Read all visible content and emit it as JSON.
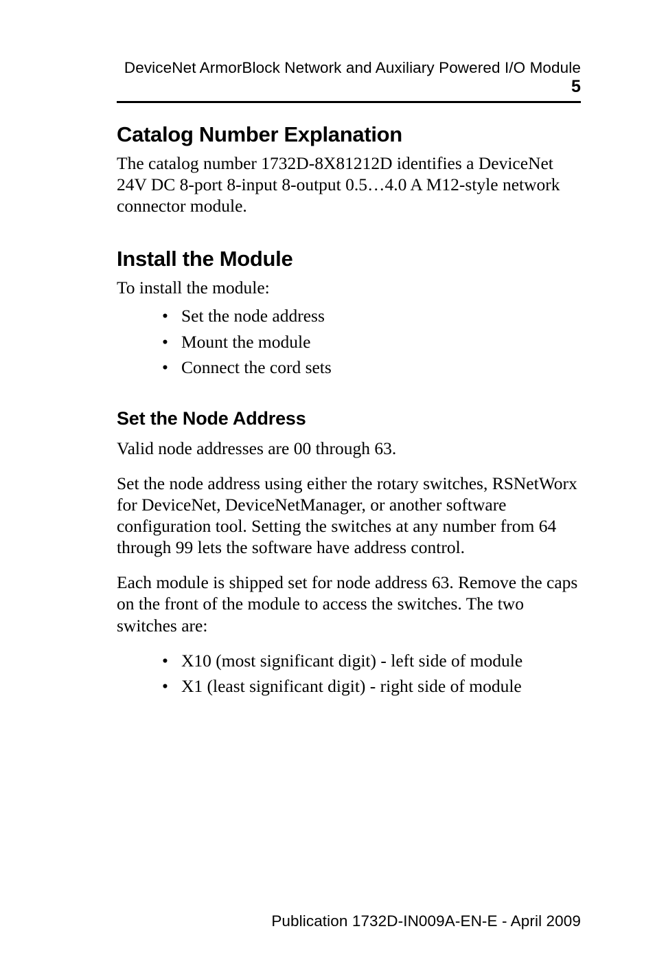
{
  "header": {
    "running_title": "DeviceNet ArmorBlock Network and Auxiliary Powered I/O Module",
    "page_number": "5"
  },
  "sections": {
    "catalog": {
      "heading": "Catalog Number Explanation",
      "paragraph": "The catalog number 1732D-8X81212D identifies a DeviceNet 24V DC 8-port 8-input 8-output 0.5…4.0 A M12-style network connector module."
    },
    "install": {
      "heading": "Install the Module",
      "intro": "To install the module:",
      "items": [
        "Set the node address",
        "Mount the module",
        "Connect the cord sets"
      ]
    },
    "node": {
      "heading": "Set the Node Address",
      "p1": "Valid node addresses are 00 through 63.",
      "p2": "Set the node address using either the rotary switches, RSNetWorx for DeviceNet, DeviceNetManager, or another software configuration tool. Setting the switches at any number from 64 through 99 lets the software have address control.",
      "p3": "Each module is shipped set for node address 63. Remove the caps on the front of the module to access the switches. The two switches are:",
      "items": [
        "X10 (most significant digit) - left side of module",
        "X1 (least significant digit) - right side of module"
      ]
    }
  },
  "footer": {
    "text": "Publication 1732D-IN009A-EN-E - April 2009"
  }
}
